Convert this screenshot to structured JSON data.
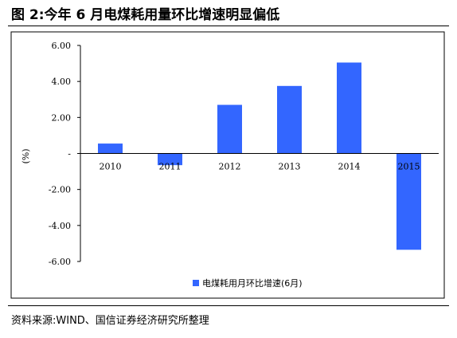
{
  "figure": {
    "title": "图 2:今年 6 月电煤耗用量环比增速明显偏低",
    "source": "资料来源:WIND、国信证券经济研究所整理"
  },
  "chart_data": {
    "type": "bar",
    "categories": [
      "2010",
      "2011",
      "2012",
      "2013",
      "2014",
      "2015"
    ],
    "series": [
      {
        "name": "电煤耗用月环比增速(6月)",
        "values": [
          0.55,
          -0.65,
          2.7,
          3.75,
          5.05,
          -5.35
        ],
        "color": "#3366ff"
      }
    ],
    "ylabel": "(%)",
    "ylim": [
      -6,
      6
    ],
    "yticks": [
      6,
      4,
      2,
      0,
      -2,
      -4,
      -6
    ],
    "ytick_labels": [
      "6.00",
      "4.00",
      "2.00",
      "-",
      "-2.00",
      "-4.00",
      "-6.00"
    ],
    "grid": false,
    "legend_position": "bottom"
  }
}
